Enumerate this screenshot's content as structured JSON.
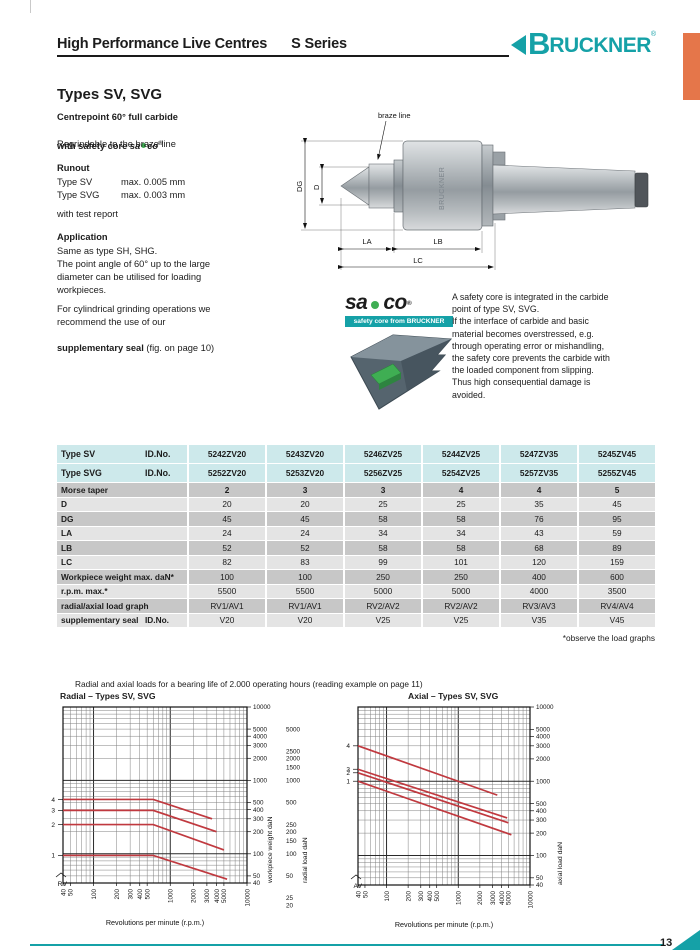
{
  "header": {
    "title": "High Performance Live Centres",
    "series": "S Series",
    "brand_initial": "B",
    "brand_rest": "RUCKNER",
    "reg": "®"
  },
  "intro": {
    "heading": "Types SV, SVG",
    "sub_bold_line1": "Centrepoint 60° full carbide",
    "sub_bold_line2_prefix": "with safety core ",
    "saco_sa": "sa",
    "saco_co": "co",
    "saco_reg": "®",
    "regrind": "Regrindable to the braze line",
    "runout_heading": "Runout",
    "runout_rows": [
      {
        "type": "Type SV",
        "value": "max. 0.005 mm"
      },
      {
        "type": "Type SVG",
        "value": "max. 0.003 mm"
      }
    ],
    "test_report": "with test report",
    "application_heading": "Application",
    "application_lines": [
      "Same as type SH, SHG.",
      "The point angle of 60° up to the large",
      "diameter can be utilised for loading",
      "workpieces."
    ],
    "grinding_lines": [
      "For cylindrical grinding operations we",
      "recommend the use of our"
    ],
    "grinding_bold": "supplementary seal",
    "grinding_rest": " (fig. on page 10)"
  },
  "drawing": {
    "braze_line": "braze line",
    "dg": "DG",
    "d": "D",
    "la": "LA",
    "lb": "LB",
    "lc": "LC",
    "engraving": "BRUCKNER"
  },
  "saco": {
    "sa": "sa",
    "co": "co",
    "reg": "®",
    "banner": "safety core from BRUCKNER"
  },
  "safety_text_lines": [
    "A safety core is integrated in the carbide",
    "point of type SV, SVG.",
    "If the interface of carbide and basic",
    "material becomes overstressed, e.g.",
    "through operating error or mishandling,",
    "the safety core prevents the carbide with",
    "the loaded component from slipping.",
    "Thus high consequential damage is",
    "avoided."
  ],
  "table": {
    "rows": [
      {
        "label": "Type SV",
        "sub": "ID.No.",
        "style": "teal",
        "values": [
          "5242ZV20",
          "5243ZV20",
          "5246ZV25",
          "5244ZV25",
          "5247ZV35",
          "5245ZV45"
        ]
      },
      {
        "label": "Type SVG",
        "sub": "ID.No.",
        "style": "teal",
        "values": [
          "5252ZV20",
          "5253ZV20",
          "5256ZV25",
          "5254ZV25",
          "5257ZV35",
          "5255ZV45"
        ]
      },
      {
        "label": "Morse taper",
        "style": "dark bold-vals",
        "values": [
          "2",
          "3",
          "3",
          "4",
          "4",
          "5"
        ]
      },
      {
        "label": "D",
        "style": "light",
        "values": [
          "20",
          "20",
          "25",
          "25",
          "35",
          "45"
        ]
      },
      {
        "label": "DG",
        "style": "dark",
        "values": [
          "45",
          "45",
          "58",
          "58",
          "76",
          "95"
        ]
      },
      {
        "label": "LA",
        "style": "light",
        "values": [
          "24",
          "24",
          "34",
          "34",
          "43",
          "59"
        ]
      },
      {
        "label": "LB",
        "style": "dark",
        "values": [
          "52",
          "52",
          "58",
          "58",
          "68",
          "89"
        ]
      },
      {
        "label": "LC",
        "style": "light",
        "values": [
          "82",
          "83",
          "99",
          "101",
          "120",
          "159"
        ]
      },
      {
        "label": "Workpiece weight max. daN*",
        "style": "dark",
        "values": [
          "100",
          "100",
          "250",
          "250",
          "400",
          "600"
        ]
      },
      {
        "label": "r.p.m. max.*",
        "style": "light",
        "values": [
          "5500",
          "5500",
          "5000",
          "5000",
          "4000",
          "3500"
        ]
      },
      {
        "label": "radial/axial load graph",
        "style": "dark",
        "values": [
          "RV1/AV1",
          "RV1/AV1",
          "RV2/AV2",
          "RV2/AV2",
          "RV3/AV3",
          "RV4/AV4"
        ]
      },
      {
        "label": "supplementary seal",
        "sub": "ID.No.",
        "style": "light",
        "values": [
          "V20",
          "V20",
          "V25",
          "V25",
          "V35",
          "V45"
        ]
      }
    ],
    "footnote": "*observe the load graphs"
  },
  "charts": {
    "caption": "Radial and axial loads for a bearing life of 2.000 operating hours (reading example on page 11)"
  },
  "chart_data": [
    {
      "type": "line",
      "title": "Radial – Types SV, SVG",
      "xlabel": "Revolutions per minute (r.p.m.)",
      "x_scale": "log",
      "y_scale": "log",
      "xlim": [
        40,
        10000
      ],
      "ylim": [
        40,
        10000
      ],
      "grid": true,
      "x_ticks": [
        40,
        50,
        100,
        200,
        300,
        400,
        500,
        1000,
        2000,
        3000,
        4000,
        5000,
        10000
      ],
      "y_axis_right": [
        {
          "label": "workpiece weight daN",
          "ticks": [
            10000,
            5000,
            4000,
            3000,
            2000,
            1000,
            500,
            400,
            300,
            200,
            100,
            50,
            40
          ]
        },
        {
          "label": "radial load daN",
          "ticks": [
            5000,
            2500,
            2000,
            1500,
            1000,
            500,
            250,
            200,
            150,
            100,
            50,
            25,
            20
          ]
        }
      ],
      "corner_label": "RV",
      "line_color": "#c0393f",
      "series": [
        {
          "name": "4",
          "points": [
            [
              40,
              550
            ],
            [
              600,
              550
            ],
            [
              3500,
              300
            ]
          ]
        },
        {
          "name": "3",
          "points": [
            [
              40,
              390
            ],
            [
              600,
              390
            ],
            [
              4000,
              200
            ]
          ]
        },
        {
          "name": "2",
          "points": [
            [
              40,
              250
            ],
            [
              600,
              250
            ],
            [
              5000,
              113
            ]
          ]
        },
        {
          "name": "1",
          "points": [
            [
              40,
              95
            ],
            [
              600,
              95
            ],
            [
              5500,
              45
            ]
          ]
        }
      ]
    },
    {
      "type": "line",
      "title": "Axial – Types SV, SVG",
      "xlabel": "Revolutions per minute (r.p.m.)",
      "x_scale": "log",
      "y_scale": "log",
      "xlim": [
        40,
        10000
      ],
      "ylim": [
        40,
        10000
      ],
      "grid": true,
      "x_ticks": [
        40,
        50,
        100,
        200,
        300,
        400,
        500,
        1000,
        2000,
        3000,
        4000,
        5000,
        10000
      ],
      "y_axis_right": [
        {
          "label": "axial load daN",
          "ticks": [
            10000,
            5000,
            4000,
            3000,
            2000,
            1000,
            500,
            400,
            300,
            200,
            100,
            50,
            40
          ]
        }
      ],
      "corner_label": "AV",
      "line_color": "#c0393f",
      "series": [
        {
          "name": "4",
          "points": [
            [
              40,
              3000
            ],
            [
              3500,
              650
            ]
          ]
        },
        {
          "name": "3",
          "points": [
            [
              40,
              1450
            ],
            [
              4800,
              320
            ]
          ]
        },
        {
          "name": "2",
          "points": [
            [
              40,
              1300
            ],
            [
              5000,
              275
            ]
          ]
        },
        {
          "name": "1",
          "points": [
            [
              40,
              1000
            ],
            [
              5500,
              190
            ]
          ]
        }
      ]
    }
  ],
  "footer": {
    "page_number": "13"
  },
  "colors": {
    "teal": "#15a1a7",
    "orange_tab": "#e5764a",
    "table_teal": "#cde9eb",
    "row_dark": "#c7c7c7",
    "row_light": "#e4e4e4",
    "curve_red": "#c0393f",
    "saco_green": "#3fae53"
  }
}
